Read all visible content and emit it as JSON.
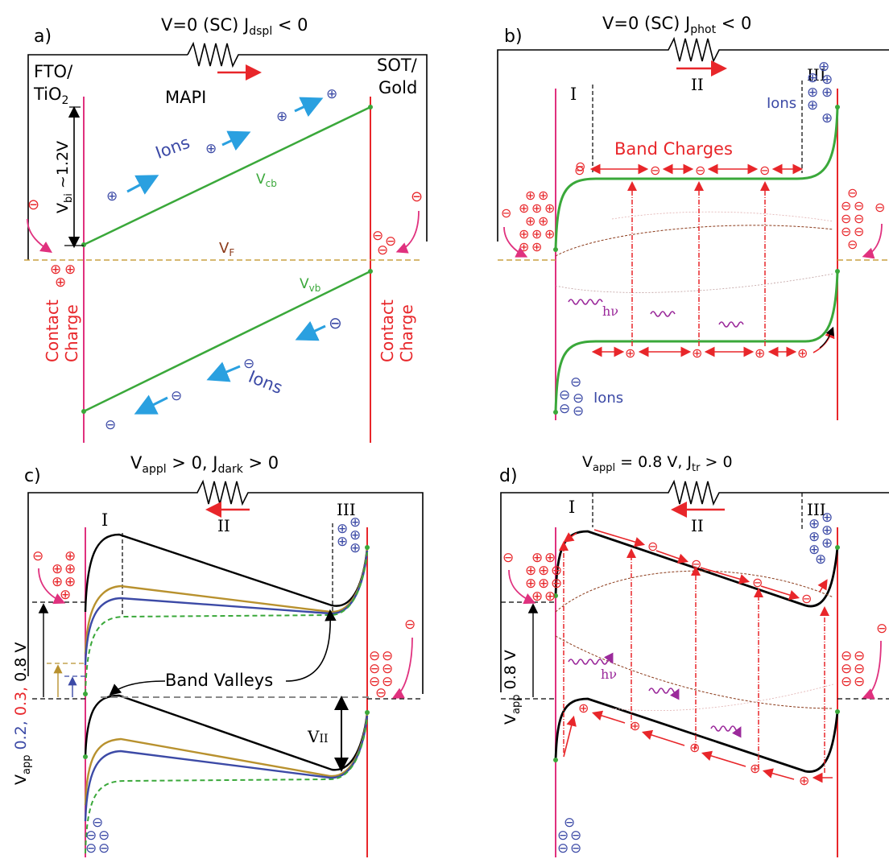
{
  "colors": {
    "black": "#000000",
    "red": "#e8262a",
    "magenta": "#e0317e",
    "green": "#3aa83a",
    "gold": "#b8912e",
    "blue": "#3c4aa6",
    "lightblue": "#2aa0e0",
    "purple": "#9b2a9b",
    "dashgold": "#c8a040",
    "brown": "#8b3a1a"
  },
  "panel_a": {
    "letter": "a)",
    "title": "V=0 (SC) J",
    "title_sub": "dspl",
    "title_tail": " < 0",
    "left_contact_1": "FTO/",
    "left_contact_2": "TiO",
    "left_contact_2_sub": "2",
    "right_contact_1": "SOT/",
    "right_contact_2": "Gold",
    "material": "MAPI",
    "ions_top": "Ions",
    "ions_bottom": "Ions",
    "vcb": "V",
    "vcb_sub": "cb",
    "vvb": "V",
    "vvb_sub": "vb",
    "vf": "V",
    "vf_sub": "F",
    "vbi": "V",
    "vbi_sub": "bi",
    "vbi_tail": " ~1.2V",
    "contact_charge_1": "Contact",
    "contact_charge_2": "Charge"
  },
  "panel_b": {
    "letter": "b)",
    "title": "V=0 (SC) J",
    "title_sub": "phot",
    "title_tail": " < 0",
    "region_i": "I",
    "region_ii": "II",
    "region_iii": "III",
    "ions_top": "Ions",
    "ions_bottom": "Ions",
    "band_charges": "Band Charges",
    "hv": "hν"
  },
  "panel_c": {
    "letter": "c)",
    "title": "V",
    "title_sub": "appl",
    "title_mid": " > 0, J",
    "title_sub2": "dark",
    "title_tail": " > 0",
    "region_i": "I",
    "region_ii": "II",
    "region_iii": "III",
    "band_valleys": "Band Valleys",
    "vii": "V",
    "vii_sub": "II",
    "vapp": "V",
    "vapp_sub": "app",
    "vapp_v1": " 0.2,",
    "vapp_v2": " 0.3,",
    "vapp_v3": " 0.8 V"
  },
  "panel_d": {
    "letter": "d)",
    "title": "V",
    "title_sub": "appl",
    "title_tail": " = 0.8 V, J",
    "title_sub2": "tr",
    "title_tail2": " > 0",
    "region_i": "I",
    "region_ii": "II",
    "region_iii": "III",
    "hv": "hν",
    "vapp": "V",
    "vapp_sub": "app",
    "vapp_tail": " 0.8 V"
  },
  "symbols": {
    "plus": "⊕",
    "minus": "⊖"
  }
}
